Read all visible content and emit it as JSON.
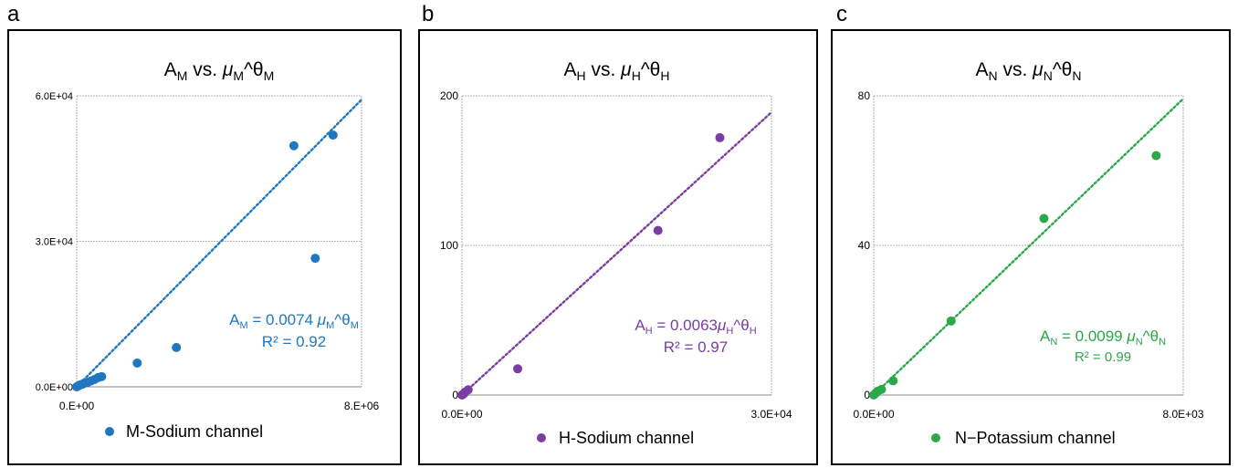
{
  "panels": [
    {
      "letter": "a",
      "title": "A",
      "title_sub": "M",
      "title_vs": "vs.",
      "title_mu": "μ",
      "title_mu_sub": "M",
      "title_theta": "^θ",
      "title_theta_sub": "M",
      "color": "#1f77c0",
      "eq_lhs": "A",
      "eq_lhs_sub": "M",
      "eq_mid": " = 0.0074 ",
      "eq_mu": "μ",
      "eq_mu_sub": "M",
      "eq_theta": "^θ",
      "eq_theta_sub": "M",
      "r2": "R² = 0.92",
      "legend": "M-Sodium channel",
      "y_ticks": [
        "0.0E+00",
        "3.0E+04",
        "6.0E+04"
      ],
      "x_ticks": [
        "0.E+00",
        "8.E+06"
      ]
    },
    {
      "letter": "b",
      "title": "A",
      "title_sub": "H",
      "title_vs": "vs.",
      "title_mu": "μ",
      "title_mu_sub": "H",
      "title_theta": "^θ",
      "title_theta_sub": "H",
      "color": "#7a3ea1",
      "eq_lhs": "A",
      "eq_lhs_sub": "H",
      "eq_mid": "  =  0.0063",
      "eq_mu": "μ",
      "eq_mu_sub": "H",
      "eq_theta": "^θ",
      "eq_theta_sub": "H",
      "r2": "R² = 0.97",
      "legend": "H-Sodium channel",
      "y_ticks": [
        "0",
        "100",
        "200"
      ],
      "x_ticks": [
        "0.0E+00",
        "3.0E+04"
      ]
    },
    {
      "letter": "c",
      "title": "A",
      "title_sub": "N",
      "title_vs": "vs.",
      "title_mu": "μ",
      "title_mu_sub": "N",
      "title_theta": "^θ",
      "title_theta_sub": "N",
      "color": "#2aa84a",
      "eq_lhs": "A",
      "eq_lhs_sub": "N",
      "eq_mid": " =  0.0099 ",
      "eq_mu": "μ",
      "eq_mu_sub": "N",
      "eq_theta": "^θ",
      "eq_theta_sub": "N",
      "r2": "R² = 0.99",
      "legend": "N−Potassium channel",
      "y_ticks": [
        "0",
        "40",
        "80"
      ],
      "x_ticks": [
        "0.0E+00",
        "8.0E+03"
      ]
    }
  ],
  "chart_data": [
    {
      "type": "scatter",
      "title": "A_M vs. μ_M^θ_M",
      "xlim": [
        0,
        8000000
      ],
      "ylim": [
        0,
        60000
      ],
      "grid": true,
      "legend_position": "bottom",
      "series": [
        {
          "name": "M-Sodium channel",
          "x": [
            0,
            50000,
            100000,
            150000,
            200000,
            300000,
            400000,
            500000,
            600000,
            700000,
            1700000,
            2800000,
            6100000,
            6700000,
            7200000
          ],
          "y": [
            0,
            200,
            400,
            500,
            700,
            900,
            1200,
            1500,
            1900,
            2100,
            4900,
            8100,
            49700,
            26500,
            51900
          ]
        }
      ],
      "trendline": {
        "slope": 0.0074,
        "intercept": 0,
        "x_range": [
          0,
          8000000
        ],
        "style": "dotted",
        "equation": "A_M = 0.0074 μ_M^θ_M",
        "r2": "R² = 0.92"
      }
    },
    {
      "type": "scatter",
      "title": "A_H vs. μ_H^θ_H",
      "xlim": [
        0,
        30000
      ],
      "ylim": [
        0,
        200
      ],
      "grid": true,
      "legend_position": "bottom",
      "series": [
        {
          "name": "H-Sodium channel",
          "x": [
            0,
            100,
            200,
            300,
            600,
            5400,
            19000,
            25000
          ],
          "y": [
            0,
            0.5,
            1,
            2,
            3.5,
            17.5,
            110,
            172
          ]
        }
      ],
      "trendline": {
        "slope": 0.0063,
        "intercept": 0,
        "x_range": [
          0,
          30000
        ],
        "style": "dotted",
        "equation": "A_H = 0.0063 μ_H^θ_H",
        "r2": "R² = 0.97"
      }
    },
    {
      "type": "scatter",
      "title": "A_N vs. μ_N^θ_N",
      "xlim": [
        0,
        8000
      ],
      "ylim": [
        0,
        80
      ],
      "grid": true,
      "legend_position": "bottom",
      "series": [
        {
          "name": "N−Potassium channel",
          "x": [
            0,
            50,
            100,
            200,
            500,
            2000,
            4400,
            7300
          ],
          "y": [
            0,
            0.5,
            1,
            1.5,
            3.8,
            19.8,
            47.2,
            64
          ]
        }
      ],
      "trendline": {
        "slope": 0.0099,
        "intercept": 0,
        "x_range": [
          0,
          8000
        ],
        "style": "dotted",
        "equation": "A_N = 0.0099 μ_N^θ_N",
        "r2": "R² = 0.99"
      }
    }
  ]
}
